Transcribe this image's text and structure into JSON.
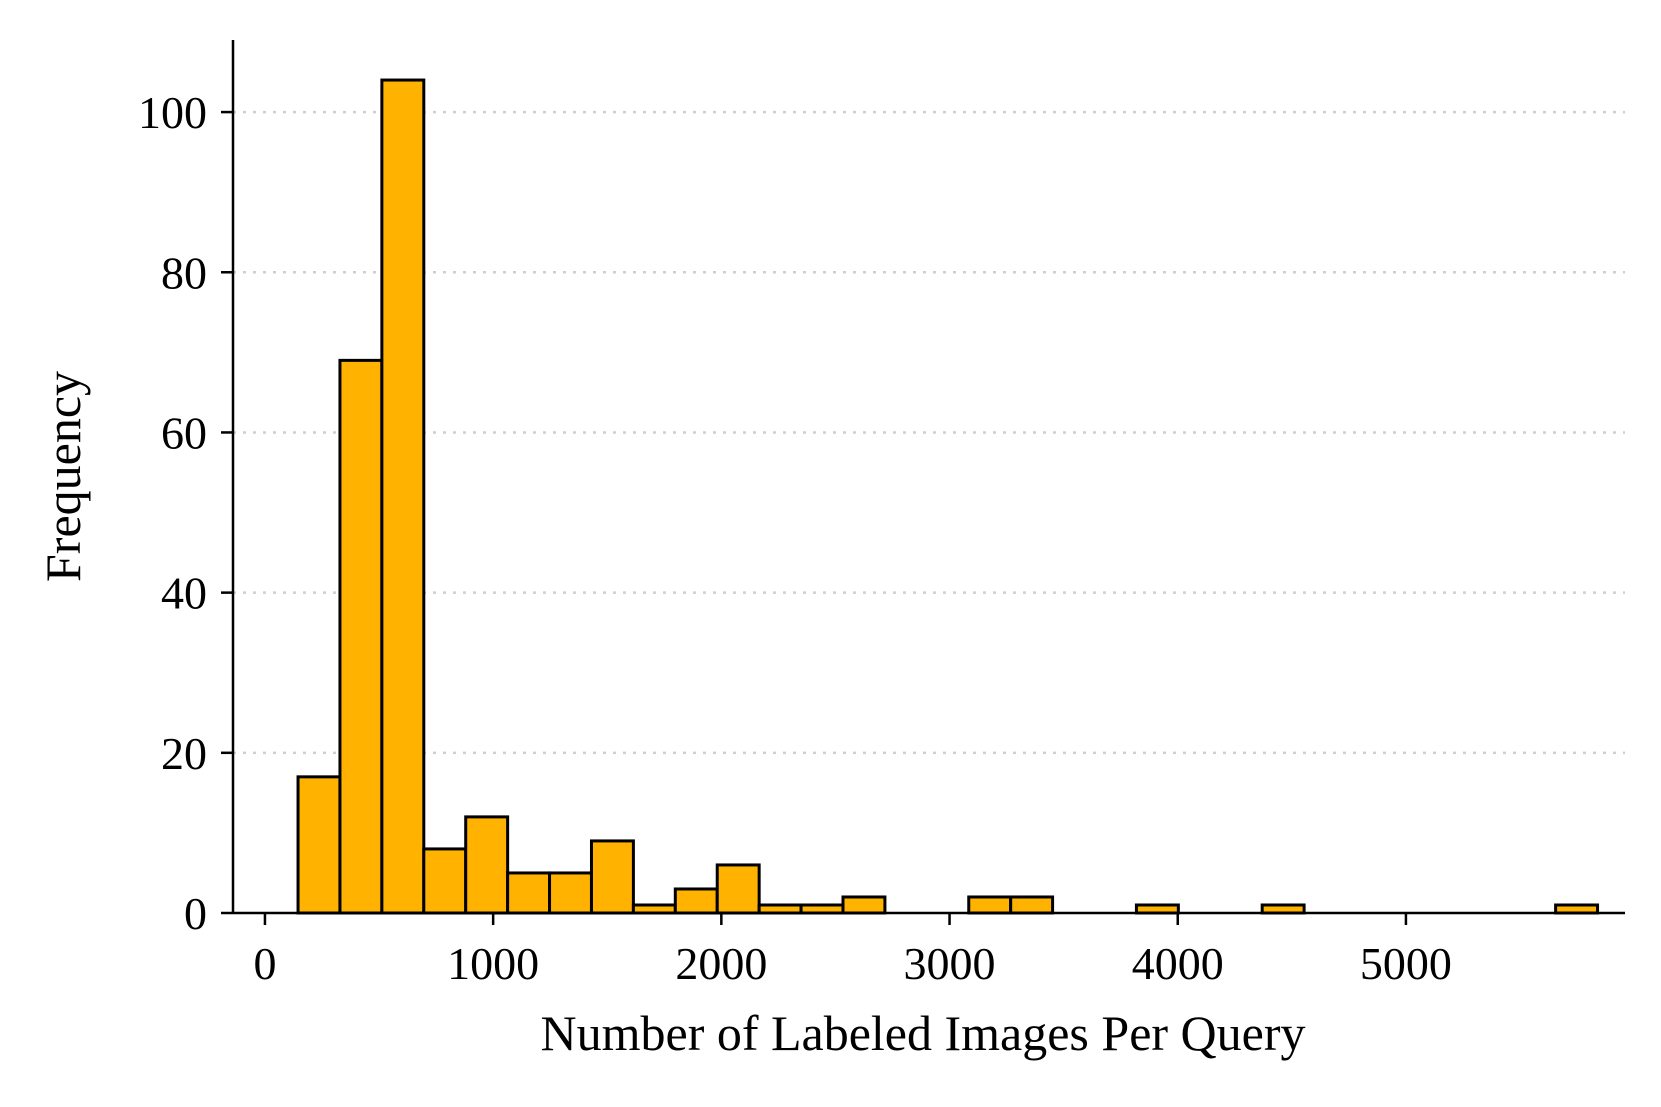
{
  "chart_data": {
    "type": "bar",
    "subtype": "histogram",
    "title": "",
    "xlabel": "Number of Labeled Images Per Query",
    "ylabel": "Frequency",
    "xlim": [
      -140,
      5960
    ],
    "ylim": [
      0,
      109
    ],
    "xticks": [
      0,
      1000,
      2000,
      3000,
      4000,
      5000
    ],
    "yticks": [
      0,
      20,
      40,
      60,
      80,
      100
    ],
    "grid": "y dotted",
    "bar_color": "#FFB300",
    "edge_color": "#000000",
    "bin_start": 145,
    "bin_width": 183.7,
    "frequencies": [
      17,
      69,
      104,
      8,
      12,
      5,
      5,
      9,
      1,
      3,
      6,
      1,
      1,
      2,
      0,
      0,
      2,
      2,
      0,
      0,
      1,
      0,
      0,
      1,
      0,
      0,
      0,
      0,
      0,
      0,
      1
    ]
  }
}
